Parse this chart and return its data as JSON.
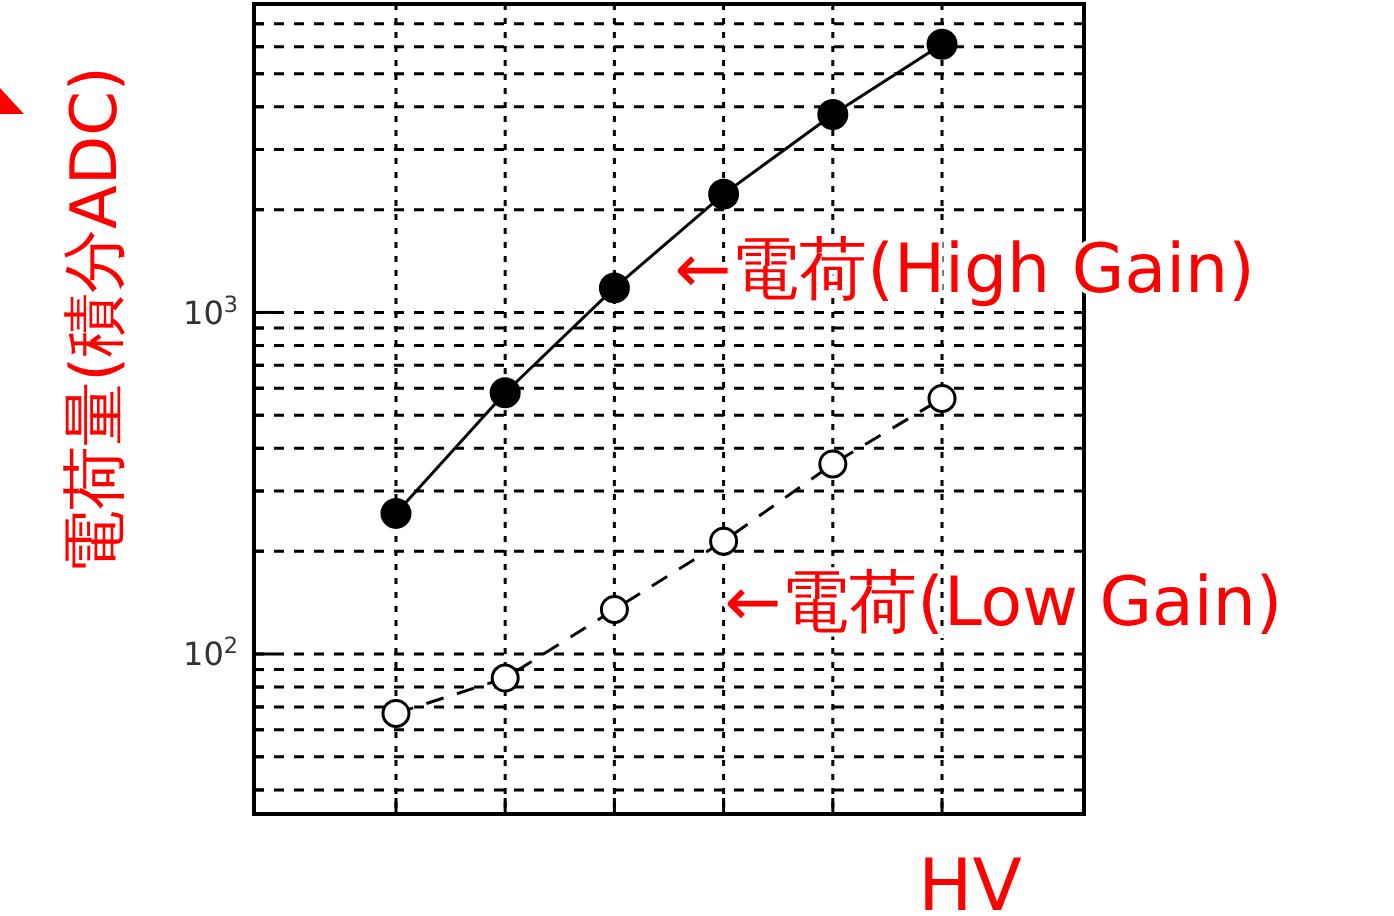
{
  "chart_data": {
    "type": "line",
    "xlabel": "HV",
    "ylabel": "電荷量(積分ADC)",
    "categories": [
      null,
      null,
      null,
      null,
      null,
      null
    ],
    "series": [
      {
        "name": "←電荷(High Gain)",
        "color": "#000000",
        "values": [
          258,
          582,
          1180,
          2220,
          3800,
          6100
        ],
        "marker": "circle",
        "line_style": "solid"
      },
      {
        "name": "←電荷(Low Gain)",
        "color": "#000000",
        "values": [
          67,
          85,
          135,
          214,
          360,
          560
        ],
        "marker": "circle",
        "line_style": "dashed"
      }
    ],
    "log": "y",
    "ylim": [
      34,
      8000
    ],
    "yticks": [
      {
        "value": 40,
        "label": null
      },
      {
        "value": 50,
        "label": null
      },
      {
        "value": 60,
        "label": null
      },
      {
        "value": 70,
        "label": null
      },
      {
        "value": 80,
        "label": null
      },
      {
        "value": 90,
        "label": null
      },
      {
        "value": 100,
        "label": "10$^{2}$"
      },
      {
        "value": 200,
        "label": null
      },
      {
        "value": 300,
        "label": null
      },
      {
        "value": 400,
        "label": null
      },
      {
        "value": 500,
        "label": null
      },
      {
        "value": 600,
        "label": null
      },
      {
        "value": 700,
        "label": null
      },
      {
        "value": 800,
        "label": null
      },
      {
        "value": 900,
        "label": null
      },
      {
        "value": 1000,
        "label": "10$^{3}$"
      },
      {
        "value": 2000,
        "label": null
      },
      {
        "value": 3000,
        "label": null
      },
      {
        "value": 4000,
        "label": null
      },
      {
        "value": 5000,
        "label": null
      },
      {
        "value": 6000,
        "label": null
      },
      {
        "value": 7000,
        "label": null
      }
    ],
    "grid": true
  }
}
